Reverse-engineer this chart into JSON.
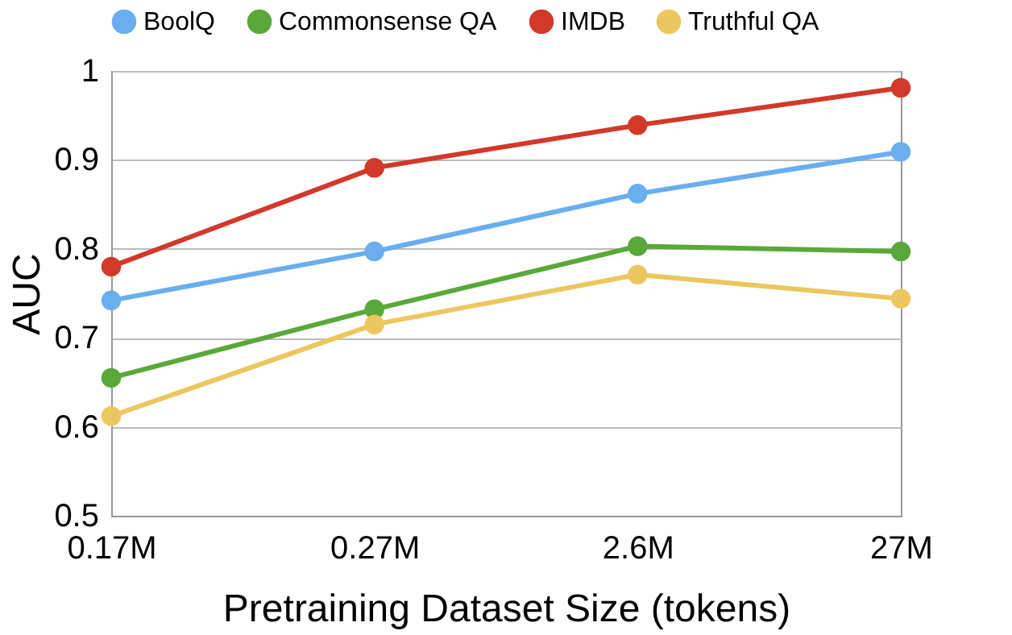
{
  "chart_data": {
    "type": "line",
    "xlabel": "Pretraining Dataset Size (tokens)",
    "ylabel": "AUC",
    "categories": [
      "0.17M",
      "0.27M",
      "2.6M",
      "27M"
    ],
    "series": [
      {
        "name": "BoolQ",
        "color": "#6aaef0",
        "values": [
          0.742,
          0.797,
          0.862,
          0.909
        ]
      },
      {
        "name": "Commonsense QA",
        "color": "#5aa83a",
        "values": [
          0.655,
          0.732,
          0.803,
          0.797
        ]
      },
      {
        "name": "IMDB",
        "color": "#d2392b",
        "values": [
          0.78,
          0.891,
          0.939,
          0.981
        ]
      },
      {
        "name": "Truthful QA",
        "color": "#ecc760",
        "values": [
          0.612,
          0.715,
          0.771,
          0.744
        ]
      }
    ],
    "ylim": [
      0.5,
      1
    ],
    "yticks": [
      0.5,
      0.6,
      0.7,
      0.8,
      0.9,
      1
    ],
    "grid": "y",
    "legend": "top",
    "marker": "circle",
    "line_style": "solid"
  }
}
